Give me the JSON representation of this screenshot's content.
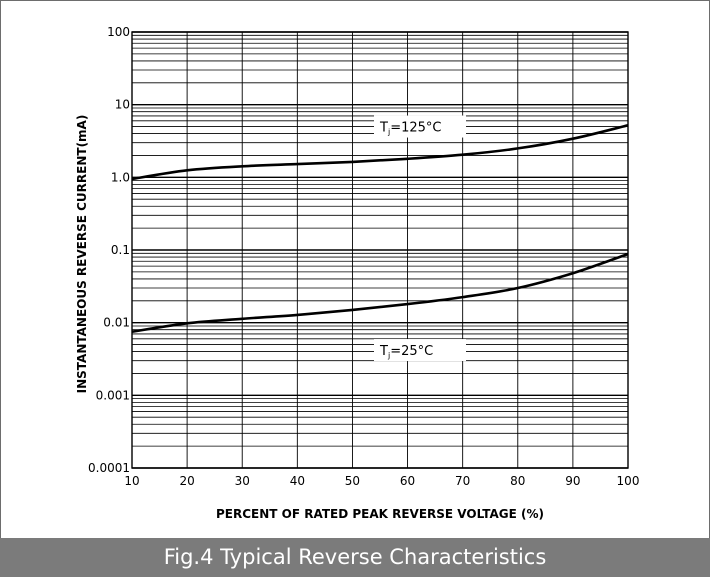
{
  "chart_data": {
    "type": "line",
    "title": "",
    "xlabel": "PERCENT OF RATED PEAK REVERSE VOLTAGE (%)",
    "ylabel": "INSTANTANEOUS REVERSE CURRENT(mA)",
    "xlim": [
      10,
      100
    ],
    "ylim": [
      0.0001,
      100
    ],
    "yscale": "log",
    "grid": true,
    "x_ticks": [
      10,
      20,
      30,
      40,
      50,
      60,
      70,
      80,
      90,
      100
    ],
    "x_tick_labels": [
      "10",
      "20",
      "30",
      "40",
      "50",
      "60",
      "70",
      "80",
      "90",
      "100"
    ],
    "y_ticks": [
      0.0001,
      0.001,
      0.01,
      0.1,
      1,
      10,
      100
    ],
    "y_tick_labels": [
      "0.0001",
      "0.001",
      "0.01",
      "0.1",
      "1.0",
      "10",
      "100"
    ],
    "series": [
      {
        "x": [
          10,
          20,
          30,
          40,
          50,
          60,
          70,
          80,
          90,
          100
        ],
        "y": [
          0.95,
          1.25,
          1.42,
          1.52,
          1.63,
          1.8,
          2.05,
          2.5,
          3.4,
          5.2
        ]
      },
      {
        "x": [
          10,
          20,
          30,
          40,
          50,
          60,
          70,
          80,
          90,
          100
        ],
        "y": [
          0.0075,
          0.0098,
          0.0113,
          0.0128,
          0.015,
          0.018,
          0.0225,
          0.03,
          0.048,
          0.088
        ]
      }
    ],
    "annotations": [
      {
        "main": "T",
        "sub": "j",
        "rest": "=125°C",
        "x": 55,
        "y": 5.0
      },
      {
        "main": "T",
        "sub": "j",
        "rest": "=25°C",
        "x": 55,
        "y": 0.0042
      }
    ]
  },
  "caption": "Fig.4 Typical Reverse Characteristics"
}
